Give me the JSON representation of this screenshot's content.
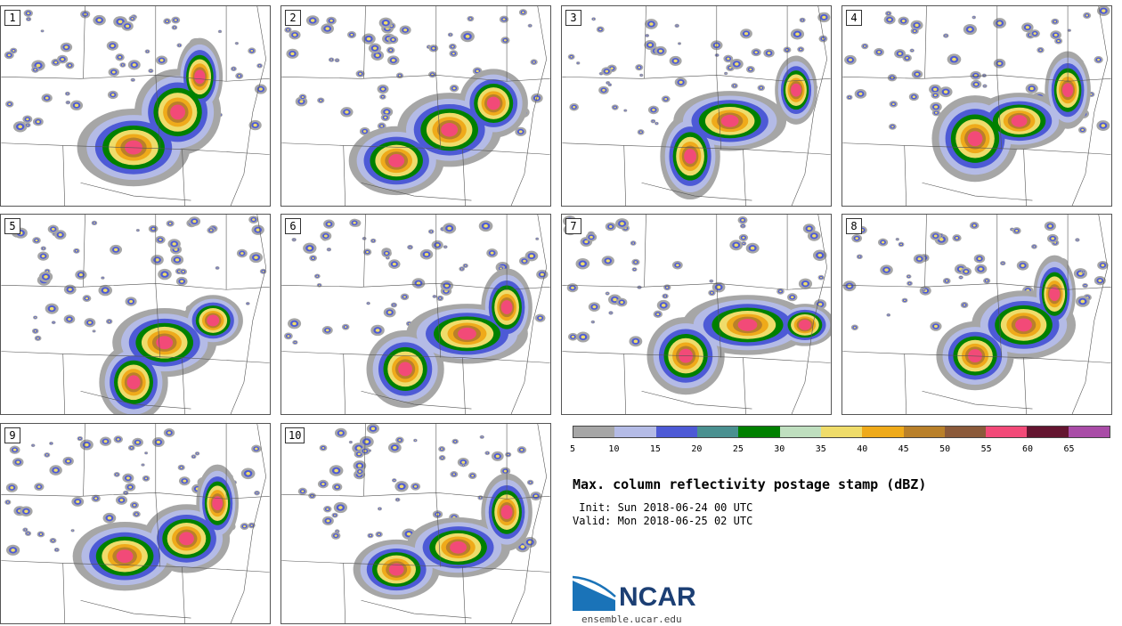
{
  "panels": [
    {
      "label": "1"
    },
    {
      "label": "2"
    },
    {
      "label": "3"
    },
    {
      "label": "4"
    },
    {
      "label": "5"
    },
    {
      "label": "6"
    },
    {
      "label": "7"
    },
    {
      "label": "8"
    },
    {
      "label": "9"
    },
    {
      "label": "10"
    }
  ],
  "colorbar": {
    "colors": [
      "#a6a6a6",
      "#b4bbe6",
      "#4d5ad6",
      "#4a9090",
      "#008000",
      "#bfdfbf",
      "#efdc6a",
      "#efaa1a",
      "#b9802a",
      "#8b5a3a",
      "#f24a78",
      "#641530",
      "#a94ca7"
    ],
    "ticks": [
      "5",
      "10",
      "15",
      "20",
      "25",
      "30",
      "35",
      "40",
      "45",
      "50",
      "55",
      "60",
      "65"
    ]
  },
  "title": "Max. column reflectivity postage stamp (dBZ)",
  "init": " Init: Sun 2018-06-24 00 UTC",
  "valid": "Valid: Mon 2018-06-25 02 UTC",
  "logo": {
    "text": "NCAR",
    "url": "ensemble.ucar.edu"
  }
}
